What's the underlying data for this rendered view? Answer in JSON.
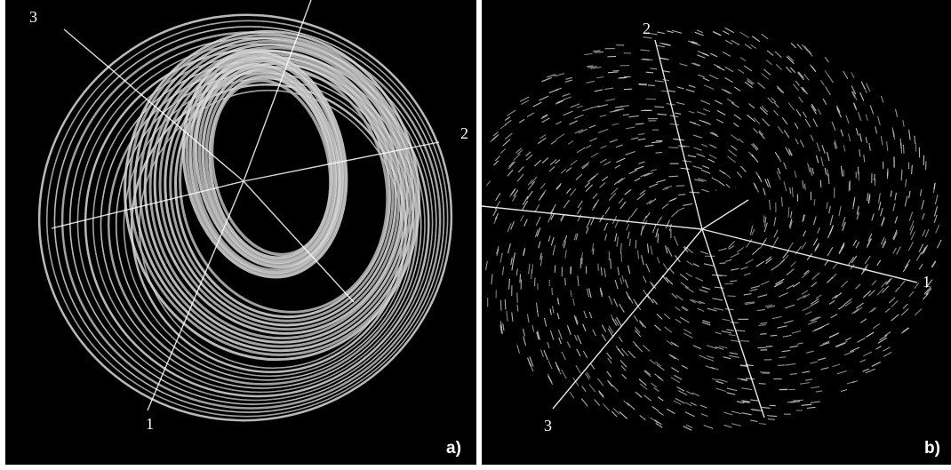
{
  "panel_a": {
    "axis_labels": {
      "a1": "1",
      "a2": "2",
      "a3": "3"
    },
    "panel_label": "a)"
  },
  "panel_b": {
    "axis_labels": {
      "a1": "1",
      "a2": "2",
      "a3": "3"
    },
    "panel_label": "b)"
  },
  "colors": {
    "background": "#000000",
    "trajectory": "#d9d9d9",
    "axes": "#ffffff",
    "separator": "#ffffff"
  }
}
